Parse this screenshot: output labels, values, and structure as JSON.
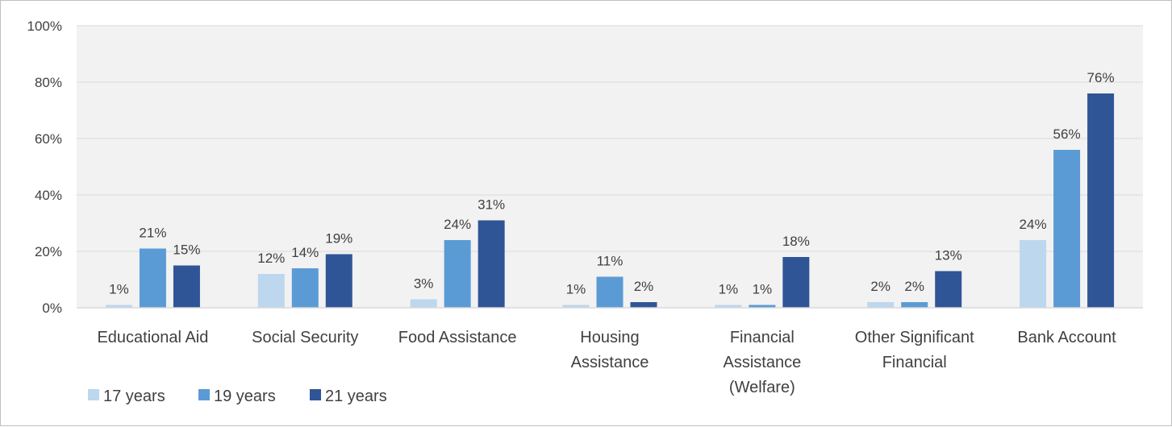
{
  "chart_data": {
    "type": "bar",
    "categories": [
      [
        "Educational Aid"
      ],
      [
        "Social Security"
      ],
      [
        "Food Assistance"
      ],
      [
        "Housing",
        "Assistance"
      ],
      [
        "Financial",
        "Assistance",
        "(Welfare)"
      ],
      [
        "Other Significant",
        "Financial"
      ],
      [
        "Bank Account"
      ]
    ],
    "series": [
      {
        "name": "17 years",
        "color": "#bdd7ee",
        "values": [
          1,
          12,
          3,
          1,
          1,
          2,
          24
        ],
        "labels": [
          "1%",
          "12%",
          "3%",
          "1%",
          "1%",
          "2%",
          "24%"
        ]
      },
      {
        "name": "19 years",
        "color": "#5b9bd5",
        "values": [
          21,
          14,
          24,
          11,
          1,
          2,
          56
        ],
        "labels": [
          "21%",
          "14%",
          "24%",
          "11%",
          "1%",
          "2%",
          "56%"
        ]
      },
      {
        "name": "21 years",
        "color": "#2f5597",
        "values": [
          15,
          19,
          31,
          2,
          18,
          13,
          76
        ],
        "labels": [
          "15%",
          "19%",
          "31%",
          "2%",
          "18%",
          "13%",
          "76%"
        ]
      }
    ],
    "ylim": [
      0,
      100
    ],
    "yticks": [
      0,
      20,
      40,
      60,
      80,
      100
    ],
    "ytick_labels": [
      "0%",
      "20%",
      "40%",
      "60%",
      "80%",
      "100%"
    ],
    "plot_background": "#f2f2f2",
    "grid": true,
    "legend": "bottom-left"
  }
}
